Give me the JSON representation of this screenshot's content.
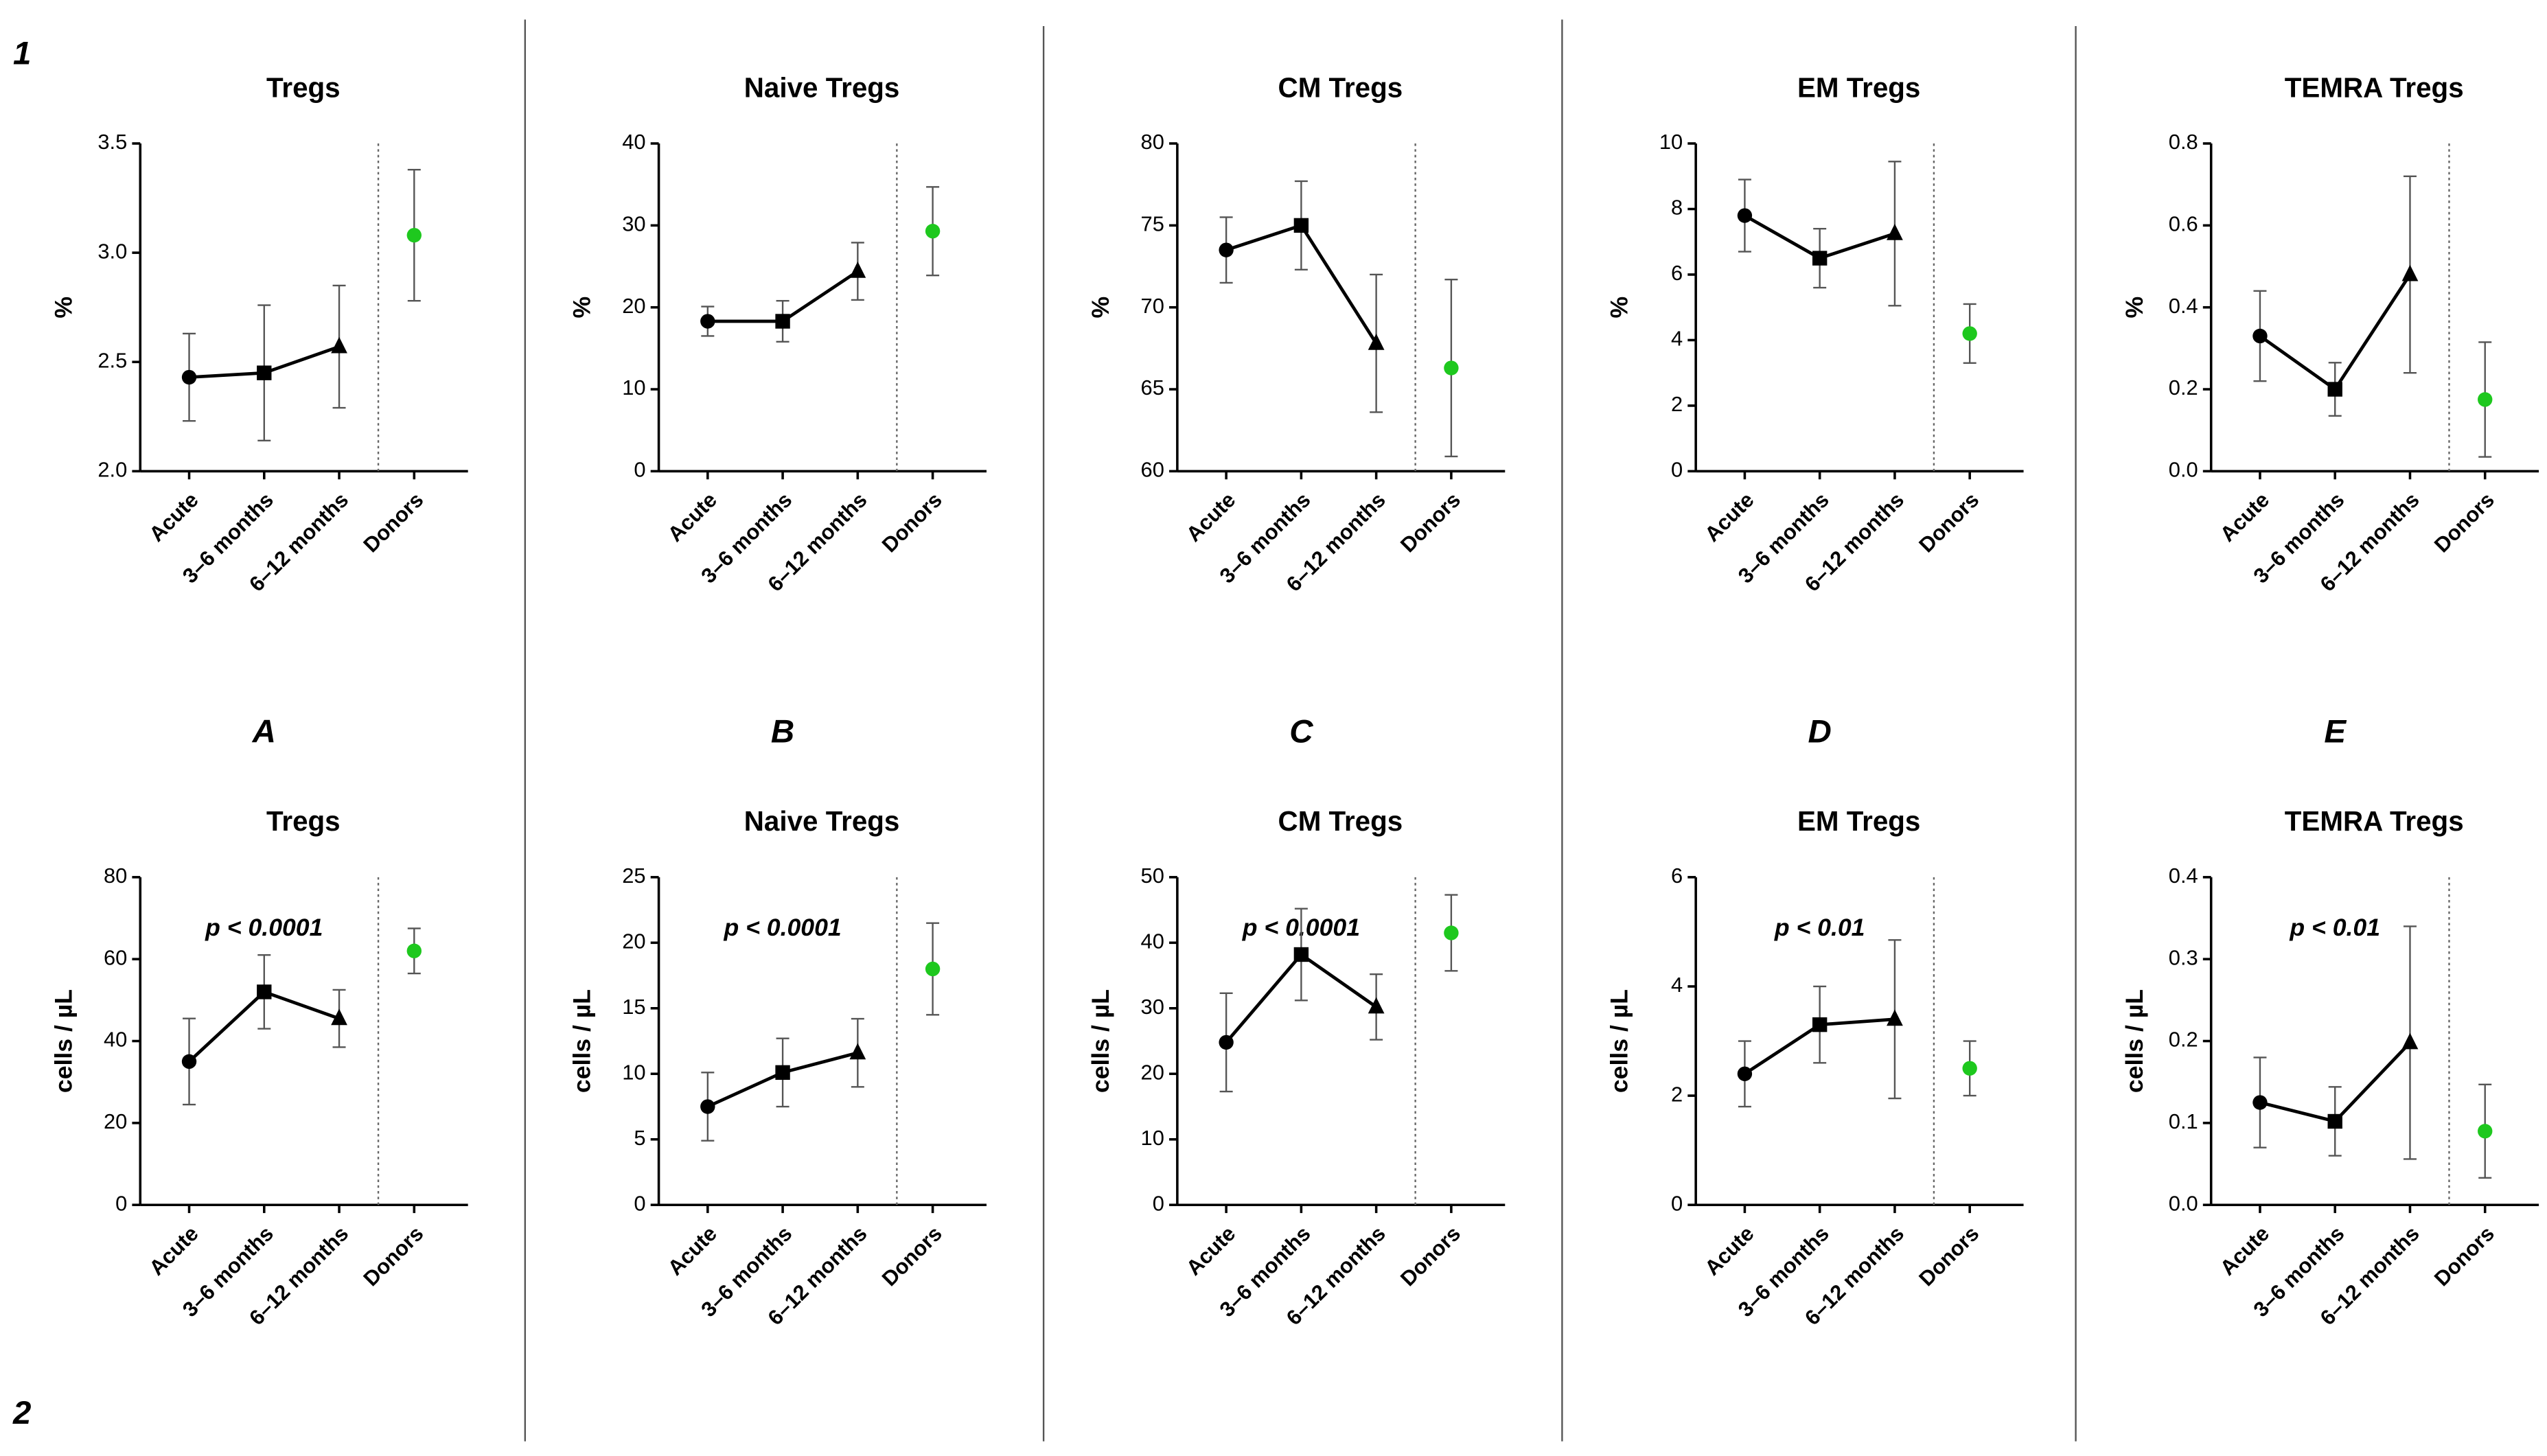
{
  "row_labels": [
    "1",
    "2"
  ],
  "panel_labels": [
    "A",
    "B",
    "C",
    "D",
    "E"
  ],
  "chart_data": [
    {
      "type": "line",
      "title": "Tregs",
      "ylabel": "%",
      "categories": [
        "Acute",
        "3–6 months",
        "6–12 months",
        "Donors"
      ],
      "markers": [
        "circle",
        "square",
        "triangle",
        "circle"
      ],
      "ylim": [
        2,
        3.5
      ],
      "yticks": [
        {
          "value": 2,
          "label": "2.0"
        },
        2.5,
        {
          "value": 3,
          "label": "3.0"
        },
        3.5
      ],
      "series": [
        {
          "color": "#000000",
          "values": [
            2.43,
            2.45,
            2.57,
            null
          ],
          "errors": [
            0.2,
            0.31,
            0.28,
            null
          ]
        },
        {
          "color": "#1ec81e",
          "values": [
            null,
            null,
            null,
            3.08
          ],
          "errors": [
            null,
            null,
            null,
            0.3
          ]
        }
      ]
    },
    {
      "type": "line",
      "title": "Naive Tregs",
      "ylabel": "%",
      "categories": [
        "Acute",
        "3–6 months",
        "6–12 months",
        "Donors"
      ],
      "markers": [
        "circle",
        "square",
        "triangle",
        "circle"
      ],
      "ylim": [
        0,
        40
      ],
      "yticks": [
        0,
        10,
        20,
        30,
        40
      ],
      "series": [
        {
          "color": "#000000",
          "values": [
            18.3,
            18.3,
            24.4,
            null
          ],
          "errors": [
            1.8,
            2.5,
            3.5,
            null
          ]
        },
        {
          "color": "#1ec81e",
          "values": [
            null,
            null,
            null,
            29.3
          ],
          "errors": [
            null,
            null,
            null,
            5.4
          ]
        }
      ]
    },
    {
      "type": "line",
      "title": "CM Tregs",
      "ylabel": "%",
      "categories": [
        "Acute",
        "3–6 months",
        "6–12 months",
        "Donors"
      ],
      "markers": [
        "circle",
        "square",
        "triangle",
        "circle"
      ],
      "ylim": [
        60,
        80
      ],
      "yticks": [
        60,
        65,
        70,
        75,
        80
      ],
      "series": [
        {
          "color": "#000000",
          "values": [
            73.5,
            75,
            67.8,
            null
          ],
          "errors": [
            2,
            2.7,
            4.2,
            null
          ]
        },
        {
          "color": "#1ec81e",
          "values": [
            null,
            null,
            null,
            66.3
          ],
          "errors": [
            null,
            null,
            null,
            5.4
          ]
        }
      ]
    },
    {
      "type": "line",
      "title": "EM Tregs",
      "ylabel": "%",
      "categories": [
        "Acute",
        "3–6 months",
        "6–12 months",
        "Donors"
      ],
      "markers": [
        "circle",
        "square",
        "triangle",
        "circle"
      ],
      "ylim": [
        0,
        10
      ],
      "yticks": [
        0,
        2,
        4,
        6,
        8,
        10
      ],
      "series": [
        {
          "color": "#000000",
          "values": [
            7.8,
            6.5,
            7.25,
            null
          ],
          "errors": [
            1.1,
            0.9,
            2.2,
            null
          ]
        },
        {
          "color": "#1ec81e",
          "values": [
            null,
            null,
            null,
            4.2
          ],
          "errors": [
            null,
            null,
            null,
            0.9
          ]
        }
      ]
    },
    {
      "type": "line",
      "title": "TEMRA Tregs",
      "ylabel": "%",
      "categories": [
        "Acute",
        "3–6 months",
        "6–12 months",
        "Donors"
      ],
      "markers": [
        "circle",
        "square",
        "triangle",
        "circle"
      ],
      "ylim": [
        0,
        0.8
      ],
      "yticks": [
        {
          "value": 0,
          "label": "0.0"
        },
        0.2,
        0.4,
        0.6,
        0.8
      ],
      "series": [
        {
          "color": "#000000",
          "values": [
            0.33,
            0.2,
            0.48,
            null
          ],
          "errors": [
            0.11,
            0.065,
            0.24,
            null
          ]
        },
        {
          "color": "#1ec81e",
          "values": [
            null,
            null,
            null,
            0.175
          ],
          "errors": [
            null,
            null,
            null,
            0.14
          ]
        }
      ]
    },
    {
      "type": "line",
      "title": "Tregs",
      "ylabel": "cells  /  µL",
      "annotation": "p < 0.0001",
      "categories": [
        "Acute",
        "3–6 months",
        "6–12 months",
        "Donors"
      ],
      "markers": [
        "circle",
        "square",
        "triangle",
        "circle"
      ],
      "ylim": [
        0,
        80
      ],
      "yticks": [
        0,
        20,
        40,
        60,
        80
      ],
      "series": [
        {
          "color": "#000000",
          "values": [
            35,
            52,
            45.5,
            null
          ],
          "errors": [
            10.5,
            9,
            7,
            null
          ]
        },
        {
          "color": "#1ec81e",
          "values": [
            null,
            null,
            null,
            62
          ],
          "errors": [
            null,
            null,
            null,
            5.5
          ]
        }
      ]
    },
    {
      "type": "line",
      "title": "Naive Tregs",
      "ylabel": "cells  /  µL",
      "annotation": "p < 0.0001",
      "categories": [
        "Acute",
        "3–6 months",
        "6–12 months",
        "Donors"
      ],
      "markers": [
        "circle",
        "square",
        "triangle",
        "circle"
      ],
      "ylim": [
        0,
        25
      ],
      "yticks": [
        0,
        5,
        10,
        15,
        20,
        25
      ],
      "series": [
        {
          "color": "#000000",
          "values": [
            7.5,
            10.1,
            11.6,
            null
          ],
          "errors": [
            2.6,
            2.6,
            2.6,
            null
          ]
        },
        {
          "color": "#1ec81e",
          "values": [
            null,
            null,
            null,
            18
          ],
          "errors": [
            null,
            null,
            null,
            3.5
          ]
        }
      ]
    },
    {
      "type": "line",
      "title": "CM Tregs",
      "ylabel": "cells  /  µL",
      "annotation": "p < 0.0001",
      "categories": [
        "Acute",
        "3–6 months",
        "6–12 months",
        "Donors"
      ],
      "markers": [
        "circle",
        "square",
        "triangle",
        "circle"
      ],
      "ylim": [
        0,
        50
      ],
      "yticks": [
        0,
        10,
        20,
        30,
        40,
        50
      ],
      "series": [
        {
          "color": "#000000",
          "values": [
            24.8,
            38.2,
            30.2,
            null
          ],
          "errors": [
            7.5,
            7,
            5,
            null
          ]
        },
        {
          "color": "#1ec81e",
          "values": [
            null,
            null,
            null,
            41.5
          ],
          "errors": [
            null,
            null,
            null,
            5.8
          ]
        }
      ]
    },
    {
      "type": "line",
      "title": "EM Tregs",
      "ylabel": "cells  /  µL",
      "annotation": "p < 0.01",
      "categories": [
        "Acute",
        "3–6 months",
        "6–12 months",
        "Donors"
      ],
      "markers": [
        "circle",
        "square",
        "triangle",
        "circle"
      ],
      "ylim": [
        0,
        6
      ],
      "yticks": [
        0,
        2,
        4,
        6
      ],
      "series": [
        {
          "color": "#000000",
          "values": [
            2.4,
            3.3,
            3.4,
            null
          ],
          "errors": [
            0.6,
            0.7,
            1.45,
            null
          ]
        },
        {
          "color": "#1ec81e",
          "values": [
            null,
            null,
            null,
            2.5
          ],
          "errors": [
            null,
            null,
            null,
            0.5
          ]
        }
      ]
    },
    {
      "type": "line",
      "title": "TEMRA Tregs",
      "ylabel": "cells  /  µL",
      "annotation": "p < 0.01",
      "categories": [
        "Acute",
        "3–6 months",
        "6–12 months",
        "Donors"
      ],
      "markers": [
        "circle",
        "square",
        "triangle",
        "circle"
      ],
      "ylim": [
        0,
        0.4
      ],
      "yticks": [
        {
          "value": 0,
          "label": "0.0"
        },
        0.1,
        0.2,
        0.3,
        0.4
      ],
      "series": [
        {
          "color": "#000000",
          "values": [
            0.125,
            0.102,
            0.198,
            null
          ],
          "errors": [
            0.055,
            0.042,
            0.142,
            null
          ]
        },
        {
          "color": "#1ec81e",
          "values": [
            null,
            null,
            null,
            0.09
          ],
          "errors": [
            null,
            null,
            null,
            0.057
          ]
        }
      ]
    }
  ]
}
